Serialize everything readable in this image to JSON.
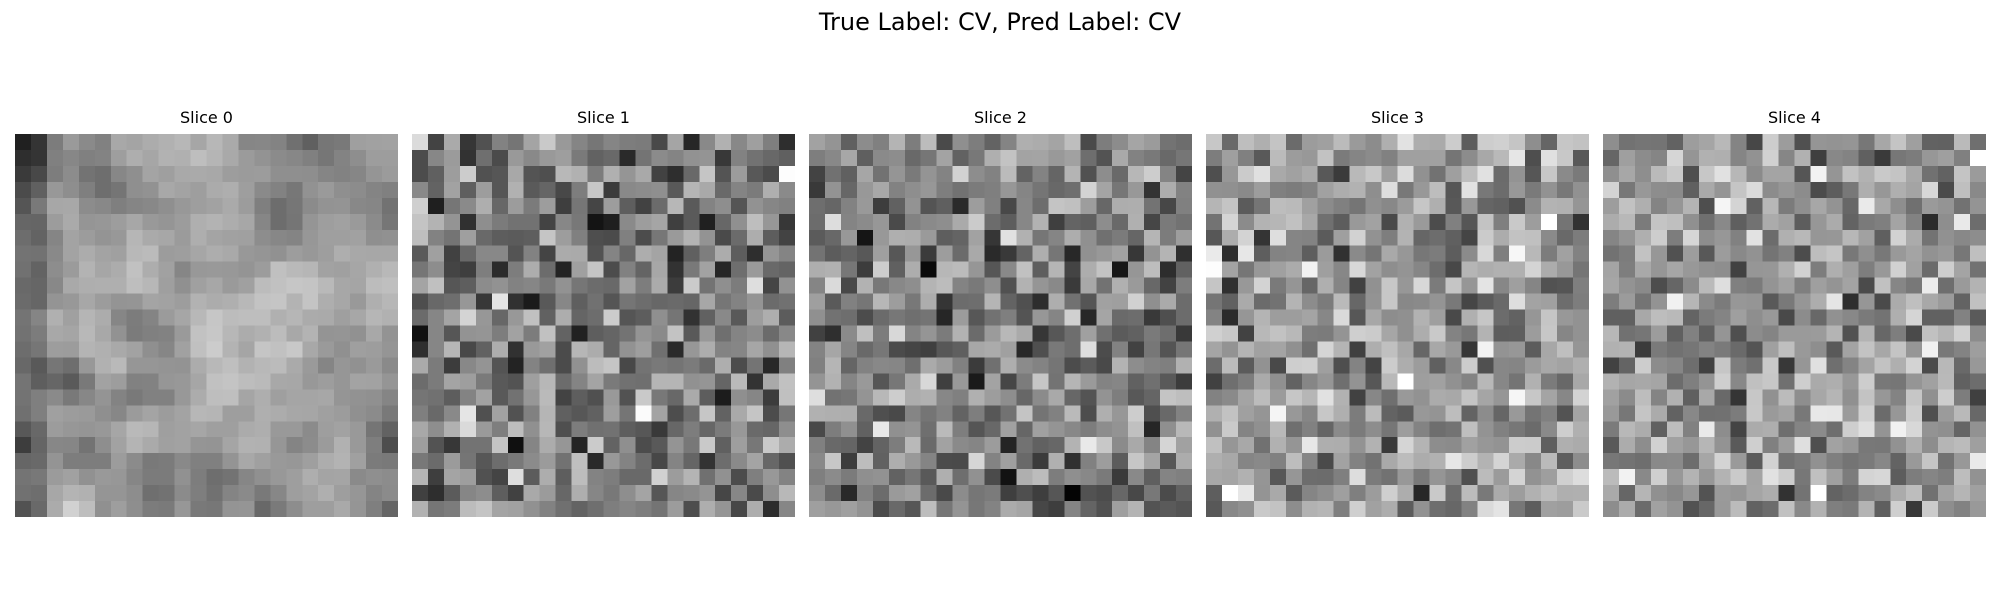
{
  "figure": {
    "title": "True Label: CV, Pred Label: CV"
  },
  "slices": [
    {
      "label": "Slice 0",
      "style": "smooth"
    },
    {
      "label": "Slice 1",
      "style": "noisy-dark"
    },
    {
      "label": "Slice 2",
      "style": "noisy-dark"
    },
    {
      "label": "Slice 3",
      "style": "noisy-light"
    },
    {
      "label": "Slice 4",
      "style": "noisy-light"
    }
  ],
  "image": {
    "grid_size": 24,
    "colormap": "gray"
  }
}
